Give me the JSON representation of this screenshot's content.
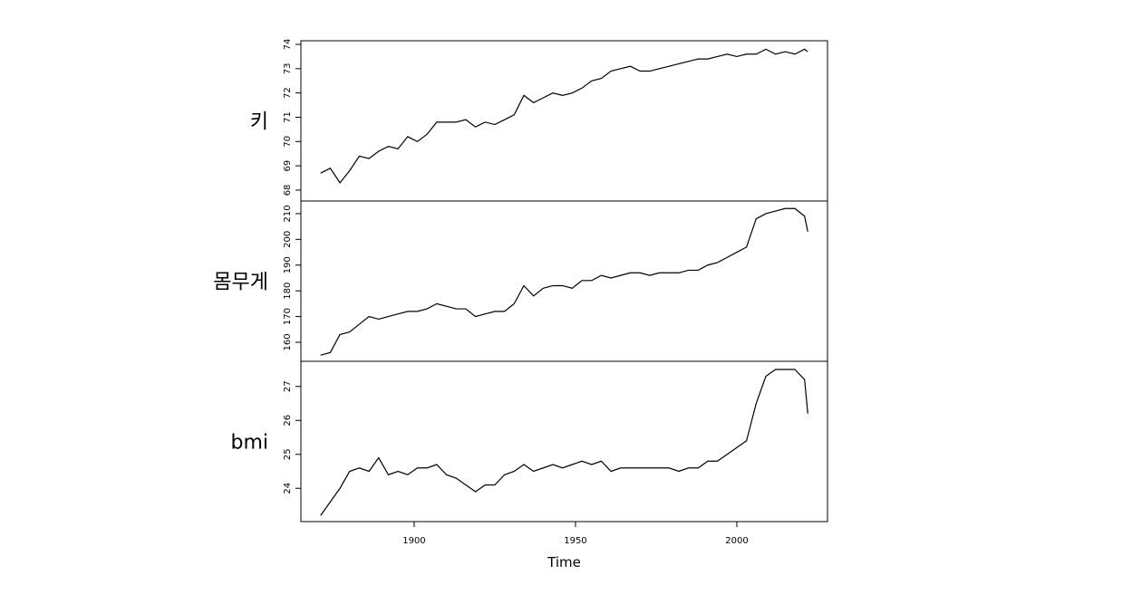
{
  "chart_data": [
    {
      "type": "line",
      "ylabel": "키",
      "x": [
        1871,
        1874,
        1877,
        1880,
        1883,
        1886,
        1889,
        1892,
        1895,
        1898,
        1901,
        1904,
        1907,
        1910,
        1913,
        1916,
        1919,
        1922,
        1925,
        1928,
        1931,
        1934,
        1937,
        1940,
        1943,
        1946,
        1949,
        1952,
        1955,
        1958,
        1961,
        1964,
        1967,
        1970,
        1973,
        1976,
        1979,
        1982,
        1985,
        1988,
        1991,
        1994,
        1997,
        2000,
        2003,
        2006,
        2009,
        2012,
        2015,
        2018,
        2021,
        2022
      ],
      "values": [
        68.7,
        68.9,
        68.3,
        68.8,
        69.4,
        69.3,
        69.6,
        69.8,
        69.7,
        70.2,
        70.0,
        70.3,
        70.8,
        70.8,
        70.8,
        70.9,
        70.6,
        70.8,
        70.7,
        70.9,
        71.1,
        71.9,
        71.6,
        71.8,
        72.0,
        71.9,
        72.0,
        72.2,
        72.5,
        72.6,
        72.9,
        73.0,
        73.1,
        72.9,
        72.9,
        73.0,
        73.1,
        73.2,
        73.3,
        73.4,
        73.4,
        73.5,
        73.6,
        73.5,
        73.6,
        73.6,
        73.8,
        73.6,
        73.7,
        73.6,
        73.8,
        73.7
      ],
      "color": "#000000",
      "xlim": [
        1864.9,
        2028.1
      ],
      "ylim": [
        67.55,
        74.15
      ],
      "yticks": [
        68,
        69,
        70,
        71,
        72,
        73,
        74
      ]
    },
    {
      "type": "line",
      "ylabel": "몸무게",
      "x": [
        1871,
        1874,
        1877,
        1880,
        1883,
        1886,
        1889,
        1892,
        1895,
        1898,
        1901,
        1904,
        1907,
        1910,
        1913,
        1916,
        1919,
        1922,
        1925,
        1928,
        1931,
        1934,
        1937,
        1940,
        1943,
        1946,
        1949,
        1952,
        1955,
        1958,
        1961,
        1964,
        1967,
        1970,
        1973,
        1976,
        1979,
        1982,
        1985,
        1988,
        1991,
        1994,
        1997,
        2000,
        2003,
        2006,
        2009,
        2012,
        2015,
        2018,
        2021,
        2022
      ],
      "values": [
        155,
        156,
        163,
        164,
        167,
        170,
        169,
        170,
        171,
        172,
        172,
        173,
        175,
        174,
        173,
        173,
        170,
        171,
        172,
        172,
        175,
        182,
        178,
        181,
        182,
        182,
        181,
        184,
        184,
        186,
        185,
        186,
        187,
        187,
        186,
        187,
        187,
        187,
        188,
        188,
        190,
        191,
        193,
        195,
        197,
        208,
        210,
        211,
        212,
        212,
        209,
        203
      ],
      "color": "#000000",
      "xlim": [
        1864.9,
        2028.1
      ],
      "ylim": [
        152.6,
        214.9
      ],
      "yticks": [
        160,
        170,
        180,
        190,
        200,
        210
      ]
    },
    {
      "type": "line",
      "ylabel": "bmi",
      "x": [
        1871,
        1874,
        1877,
        1880,
        1883,
        1886,
        1889,
        1892,
        1895,
        1898,
        1901,
        1904,
        1907,
        1910,
        1913,
        1916,
        1919,
        1922,
        1925,
        1928,
        1931,
        1934,
        1937,
        1940,
        1943,
        1946,
        1949,
        1952,
        1955,
        1958,
        1961,
        1964,
        1967,
        1970,
        1973,
        1976,
        1979,
        1982,
        1985,
        1988,
        1991,
        1994,
        1997,
        2000,
        2003,
        2006,
        2009,
        2012,
        2015,
        2018,
        2021,
        2022
      ],
      "values": [
        23.2,
        23.6,
        24.0,
        24.5,
        24.6,
        24.5,
        24.9,
        24.4,
        24.5,
        24.4,
        24.6,
        24.6,
        24.7,
        24.4,
        24.3,
        24.1,
        23.9,
        24.1,
        24.1,
        24.4,
        24.5,
        24.7,
        24.5,
        24.6,
        24.7,
        24.6,
        24.7,
        24.8,
        24.7,
        24.8,
        24.5,
        24.6,
        24.6,
        24.6,
        24.6,
        24.6,
        24.6,
        24.5,
        24.6,
        24.6,
        24.8,
        24.8,
        25.0,
        25.2,
        25.4,
        26.5,
        27.3,
        27.5,
        27.5,
        27.5,
        27.2,
        26.2
      ],
      "color": "#000000",
      "xlim": [
        1864.9,
        2028.1
      ],
      "ylim": [
        23.02,
        27.74
      ],
      "yticks": [
        24,
        25,
        26,
        27
      ],
      "xticks": [
        1900,
        1950,
        2000
      ],
      "xlabel": "Time"
    }
  ]
}
